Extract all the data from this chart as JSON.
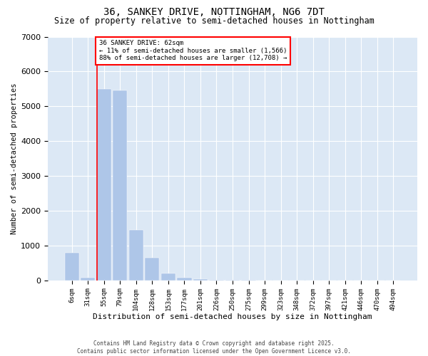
{
  "title": "36, SANKEY DRIVE, NOTTINGHAM, NG6 7DT",
  "subtitle": "Size of property relative to semi-detached houses in Nottingham",
  "xlabel": "Distribution of semi-detached houses by size in Nottingham",
  "ylabel": "Number of semi-detached properties",
  "categories": [
    "6sqm",
    "31sqm",
    "55sqm",
    "79sqm",
    "104sqm",
    "128sqm",
    "153sqm",
    "177sqm",
    "201sqm",
    "226sqm",
    "250sqm",
    "275sqm",
    "299sqm",
    "323sqm",
    "348sqm",
    "372sqm",
    "397sqm",
    "421sqm",
    "446sqm",
    "470sqm",
    "494sqm"
  ],
  "values": [
    800,
    80,
    5500,
    5450,
    1450,
    650,
    200,
    80,
    30,
    15,
    10,
    8,
    5,
    4,
    3,
    2,
    1,
    1,
    1,
    1,
    1
  ],
  "bar_color": "#aec6e8",
  "property_bin_index": 2,
  "property_sqm": 62,
  "annotation_title": "36 SANKEY DRIVE: 62sqm",
  "annotation_line1": "← 11% of semi-detached houses are smaller (1,566)",
  "annotation_line2": "88% of semi-detached houses are larger (12,708) →",
  "annotation_box_color": "red",
  "footer1": "Contains HM Land Registry data © Crown copyright and database right 2025.",
  "footer2": "Contains public sector information licensed under the Open Government Licence v3.0.",
  "ylim": [
    0,
    7000
  ],
  "background_color": "#dce8f5",
  "title_fontsize": 10,
  "subtitle_fontsize": 8.5,
  "tick_fontsize": 6.5,
  "ylabel_fontsize": 7.5,
  "xlabel_fontsize": 8
}
